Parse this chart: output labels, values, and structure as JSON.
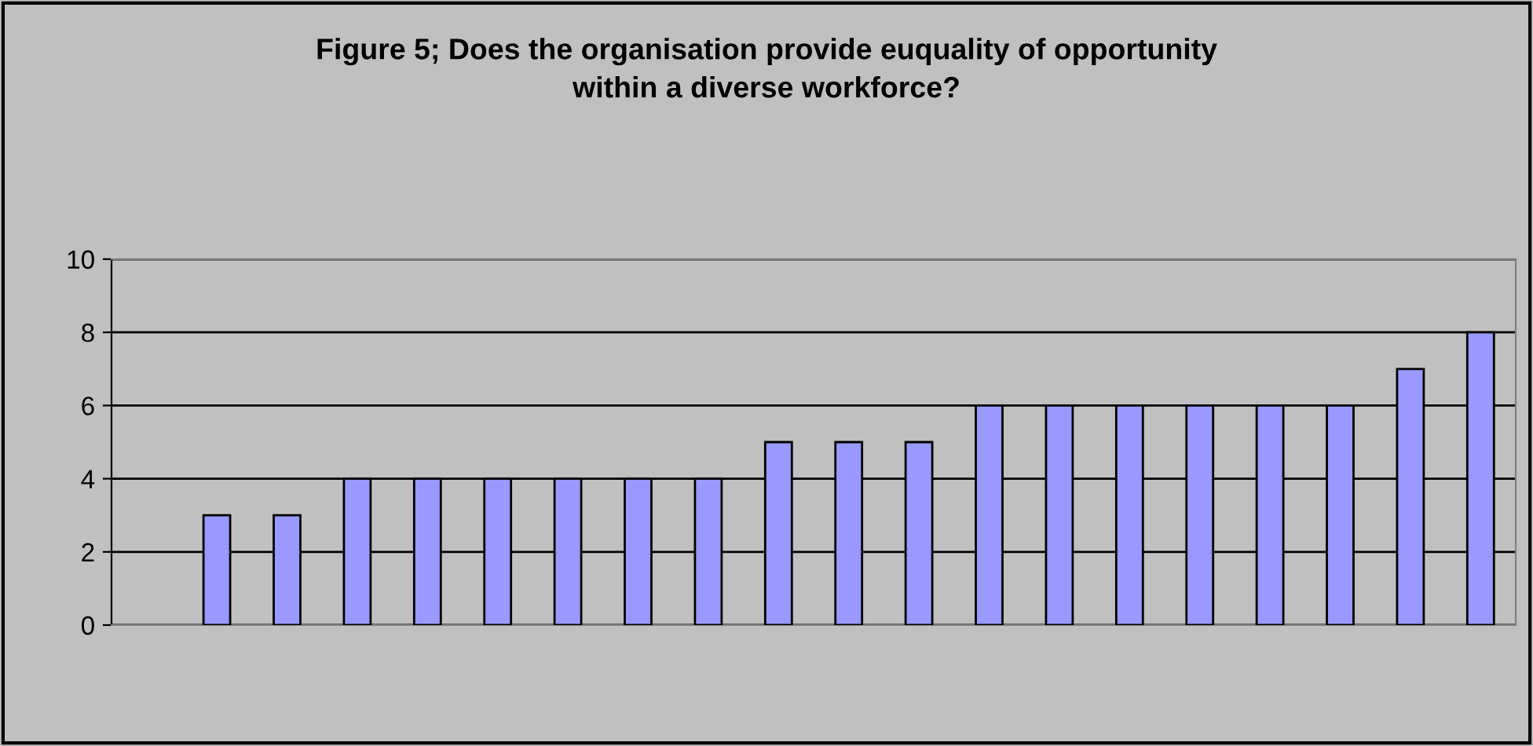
{
  "chart_data": {
    "type": "bar",
    "title": "Figure 5; Does the organisation provide euquality of opportunity\nwithin a diverse workforce?",
    "categories": [
      null,
      null,
      null,
      null,
      null,
      null,
      null,
      null,
      null,
      null,
      null,
      null,
      null,
      null,
      null,
      null,
      null,
      null,
      null,
      null
    ],
    "values": [
      null,
      3,
      3,
      4,
      4,
      4,
      4,
      4,
      4,
      5,
      5,
      5,
      6,
      6,
      6,
      6,
      6,
      6,
      7,
      8
    ],
    "color": "#9999ff",
    "ylim": [
      0,
      10
    ],
    "yticks": [
      0,
      2,
      4,
      6,
      8,
      10
    ],
    "grid": "y",
    "tick_labels": "y"
  }
}
